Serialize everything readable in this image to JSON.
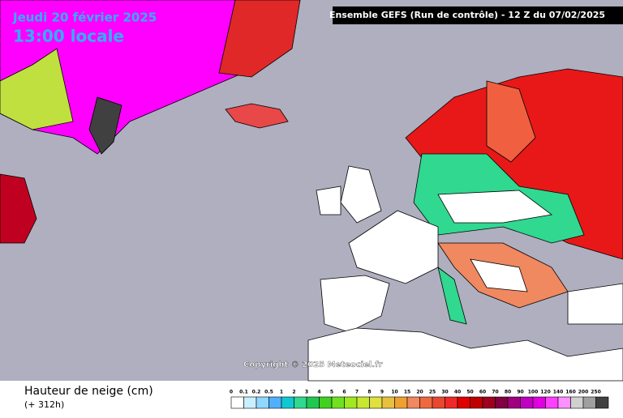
{
  "header": {
    "date": "Jeudi 20 février 2025",
    "time": "13:00 locale",
    "run": "Ensemble GEFS  (Run de contrôle)  -  12 Z du 07/02/2025"
  },
  "copyright": "Copyright © 2025 Meteociel.fr",
  "legend": {
    "title": "Hauteur de neige (cm)",
    "lead": "(+ 312h)",
    "items": [
      {
        "label": "0",
        "color": "#ffffff"
      },
      {
        "label": "0.1",
        "color": "#c8f0ff"
      },
      {
        "label": "0.2",
        "color": "#90d8ff"
      },
      {
        "label": "0.5",
        "color": "#50b0ff"
      },
      {
        "label": "1",
        "color": "#10c8d0"
      },
      {
        "label": "2",
        "color": "#30d890"
      },
      {
        "label": "3",
        "color": "#20c850"
      },
      {
        "label": "4",
        "color": "#40d020"
      },
      {
        "label": "5",
        "color": "#70e020"
      },
      {
        "label": "6",
        "color": "#a0e820"
      },
      {
        "label": "7",
        "color": "#c8e830"
      },
      {
        "label": "8",
        "color": "#e0e040"
      },
      {
        "label": "9",
        "color": "#e8c040"
      },
      {
        "label": "10",
        "color": "#f0a030"
      },
      {
        "label": "15",
        "color": "#f08860"
      },
      {
        "label": "20",
        "color": "#f06840"
      },
      {
        "label": "25",
        "color": "#e84830"
      },
      {
        "label": "30",
        "color": "#f02828"
      },
      {
        "label": "40",
        "color": "#e00000"
      },
      {
        "label": "50",
        "color": "#c00000"
      },
      {
        "label": "60",
        "color": "#a00020"
      },
      {
        "label": "70",
        "color": "#800040"
      },
      {
        "label": "80",
        "color": "#a00080"
      },
      {
        "label": "90",
        "color": "#c000c0"
      },
      {
        "label": "100",
        "color": "#e000e0"
      },
      {
        "label": "120",
        "color": "#ff40ff"
      },
      {
        "label": "140",
        "color": "#ff90ff"
      },
      {
        "label": "160",
        "color": "#d0d0d0"
      },
      {
        "label": "200",
        "color": "#a0a0a0"
      },
      {
        "label": "250",
        "color": "#404040"
      }
    ]
  }
}
